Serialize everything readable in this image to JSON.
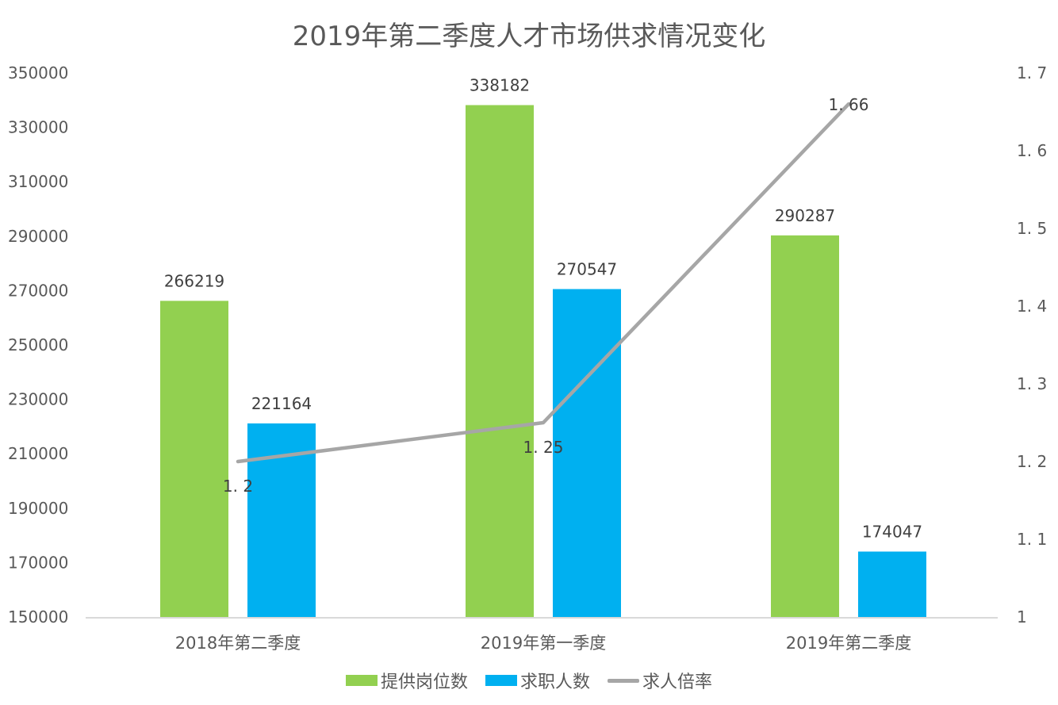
{
  "chart_data": {
    "type": "bar",
    "title": "2019年第二季度人才市场供求情况变化",
    "categories": [
      "2018年第二季度",
      "2019年第一季度",
      "2019年第二季度"
    ],
    "series": [
      {
        "name": "提供岗位数",
        "kind": "bar",
        "axis": "left",
        "color": "#92D050",
        "values": [
          266219,
          338182,
          290287
        ]
      },
      {
        "name": "求职人数",
        "kind": "bar",
        "axis": "left",
        "color": "#00B0F0",
        "values": [
          221164,
          270547,
          174047
        ]
      },
      {
        "name": "求人倍率",
        "kind": "line",
        "axis": "right",
        "color": "#A6A6A6",
        "values": [
          1.2,
          1.25,
          1.66
        ]
      }
    ],
    "data_labels": {
      "提供岗位数": [
        "266219",
        "338182",
        "290287"
      ],
      "求职人数": [
        "221164",
        "270547",
        "174047"
      ],
      "求人倍率": [
        "1. 2",
        "1. 25",
        "1. 66"
      ]
    },
    "y_left": {
      "range": [
        150000,
        350000
      ],
      "ticks": [
        150000,
        170000,
        190000,
        210000,
        230000,
        250000,
        270000,
        290000,
        310000,
        330000,
        350000
      ],
      "tick_labels": [
        "150000",
        "170000",
        "190000",
        "210000",
        "230000",
        "250000",
        "270000",
        "290000",
        "310000",
        "330000",
        "350000"
      ]
    },
    "y_right": {
      "range": [
        1.0,
        1.7
      ],
      "ticks": [
        1.0,
        1.1,
        1.2,
        1.3,
        1.4,
        1.5,
        1.6,
        1.7
      ],
      "tick_labels": [
        "1",
        "1. 1",
        "1. 2",
        "1. 3",
        "1. 4",
        "1. 5",
        "1. 6",
        "1. 7"
      ]
    },
    "xlabel": "",
    "ylabel": "",
    "grid": false,
    "legend": {
      "position": "bottom",
      "entries": [
        "提供岗位数",
        "求职人数",
        "求人倍率"
      ]
    }
  },
  "colors": {
    "axis_line": "#D9D9D9",
    "text": "#595959"
  }
}
